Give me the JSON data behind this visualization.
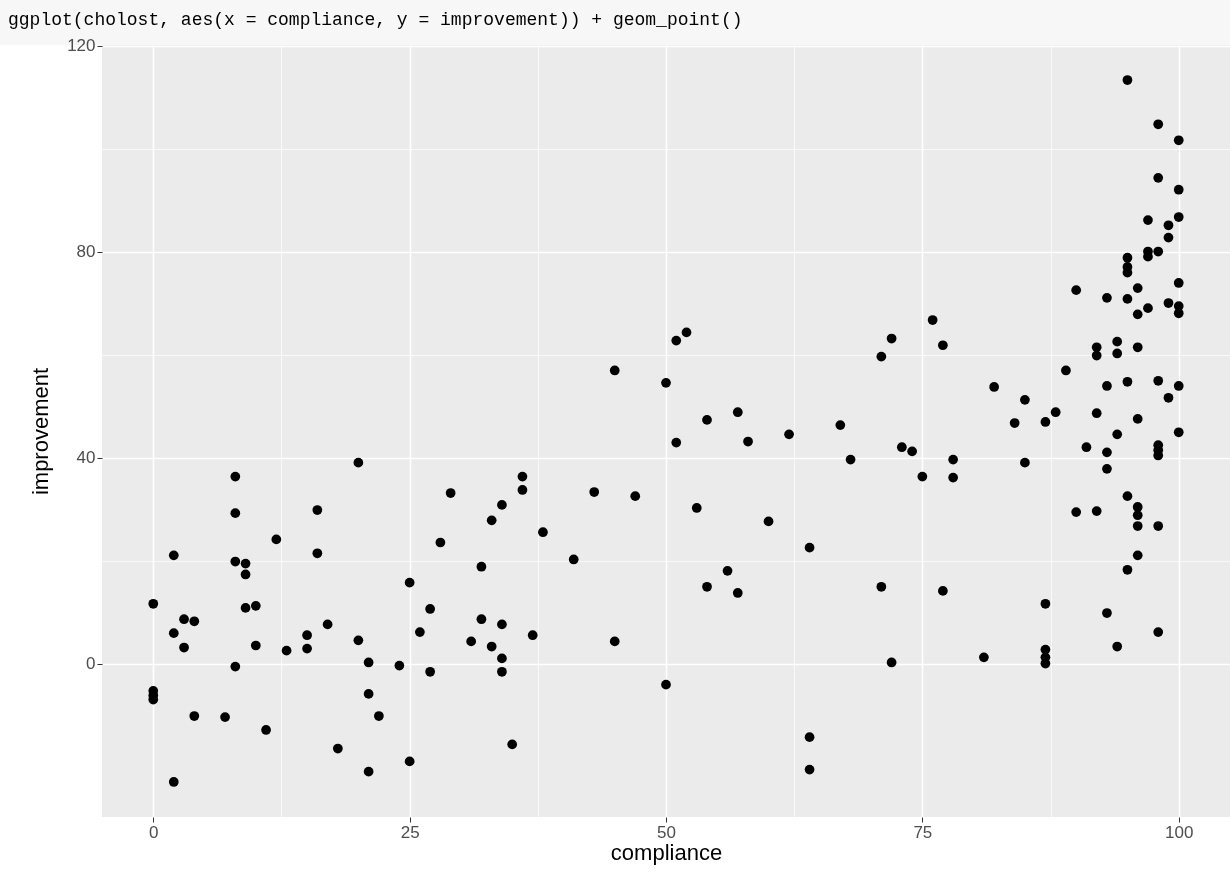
{
  "chart_data": {
    "type": "scatter",
    "title": "ggplot(cholost, aes(x = compliance, y = improvement)) + geom_point()",
    "xlabel": "compliance",
    "ylabel": "improvement",
    "color": "#000000",
    "marker": "circle",
    "grid": true,
    "xlim": [
      -5,
      105
    ],
    "xticks": [
      0,
      25,
      50,
      75,
      100
    ],
    "ylim": [
      -29.8,
      120.1
    ],
    "yticks": [
      0,
      40,
      80,
      120
    ],
    "x": [
      0,
      0,
      0,
      0,
      2,
      2,
      2,
      3,
      3,
      4,
      4,
      7,
      8,
      8,
      8,
      8,
      9,
      9,
      9,
      10,
      10,
      11,
      12,
      13,
      15,
      15,
      16,
      16,
      17,
      18,
      20,
      20,
      21,
      21,
      21,
      22,
      24,
      25,
      25,
      26,
      27,
      27,
      28,
      29,
      31,
      32,
      32,
      33,
      33,
      34,
      34,
      34,
      34,
      35,
      36,
      36,
      37,
      38,
      41,
      43,
      45,
      45,
      47,
      50,
      50,
      51,
      52,
      51,
      53,
      54,
      54,
      56,
      57,
      57,
      58,
      60,
      62,
      64,
      64,
      64,
      67,
      68,
      71,
      71,
      72,
      72,
      73,
      74,
      75,
      76,
      77,
      77,
      78,
      78,
      81,
      82,
      84,
      85,
      85,
      87,
      87,
      87,
      87,
      87,
      88,
      89,
      90,
      90,
      91,
      92,
      92,
      92,
      92,
      93,
      93,
      93,
      93,
      93,
      94,
      94,
      94,
      94,
      95,
      95,
      95,
      95,
      95,
      95,
      95,
      95,
      96,
      96,
      96,
      96,
      96,
      96,
      96,
      96,
      97,
      97,
      97,
      97,
      98,
      98,
      98,
      98,
      98,
      98,
      98,
      98,
      98,
      99,
      99,
      99,
      99,
      100,
      100,
      100,
      100,
      100,
      100,
      100,
      100
    ],
    "values": [
      11.6,
      -5.3,
      -6.2,
      -7.0,
      21.0,
      5.9,
      -23.0,
      8.6,
      3.1,
      8.2,
      -10.2,
      -10.4,
      36.3,
      29.2,
      19.8,
      -0.6,
      19.4,
      17.3,
      10.8,
      11.2,
      3.5,
      -12.9,
      24.1,
      2.5,
      5.5,
      2.9,
      29.8,
      21.4,
      7.6,
      -16.5,
      39.0,
      4.5,
      -5.9,
      0.2,
      -21.0,
      -10.2,
      -0.4,
      15.7,
      -19.0,
      6.1,
      10.6,
      -1.6,
      23.5,
      33.1,
      4.3,
      18.8,
      8.6,
      27.8,
      3.3,
      30.8,
      7.6,
      1.0,
      -1.6,
      -15.7,
      36.3,
      33.7,
      5.5,
      25.5,
      20.2,
      33.3,
      56.9,
      4.3,
      32.5,
      54.5,
      -4.1,
      62.7,
      64.3,
      42.9,
      30.2,
      47.3,
      14.9,
      18.0,
      48.8,
      13.7,
      43.1,
      27.6,
      44.5,
      22.5,
      -14.3,
      -20.6,
      46.3,
      39.6,
      59.6,
      14.9,
      63.1,
      0.2,
      42.0,
      41.2,
      36.3,
      66.7,
      61.8,
      14.1,
      39.6,
      36.1,
      1.2,
      53.7,
      46.7,
      51.2,
      39.0,
      46.9,
      11.6,
      2.7,
      1.2,
      0.0,
      48.8,
      56.9,
      72.5,
      29.4,
      42.0,
      61.4,
      59.8,
      48.6,
      29.6,
      71.0,
      53.9,
      41.0,
      37.8,
      9.8,
      62.5,
      60.2,
      44.5,
      3.3,
      113.3,
      78.8,
      77.0,
      75.9,
      70.8,
      54.7,
      32.5,
      18.2,
      72.9,
      67.8,
      61.4,
      47.5,
      30.4,
      28.8,
      26.7,
      21.0,
      86.1,
      80.0,
      79.0,
      69.0,
      104.7,
      94.3,
      80.0,
      54.9,
      42.4,
      41.4,
      40.4,
      26.7,
      6.1,
      85.1,
      82.7,
      70.0,
      51.6,
      101.6,
      92.0,
      86.7,
      73.9,
      69.4,
      68.0,
      53.9,
      44.9
    ]
  }
}
